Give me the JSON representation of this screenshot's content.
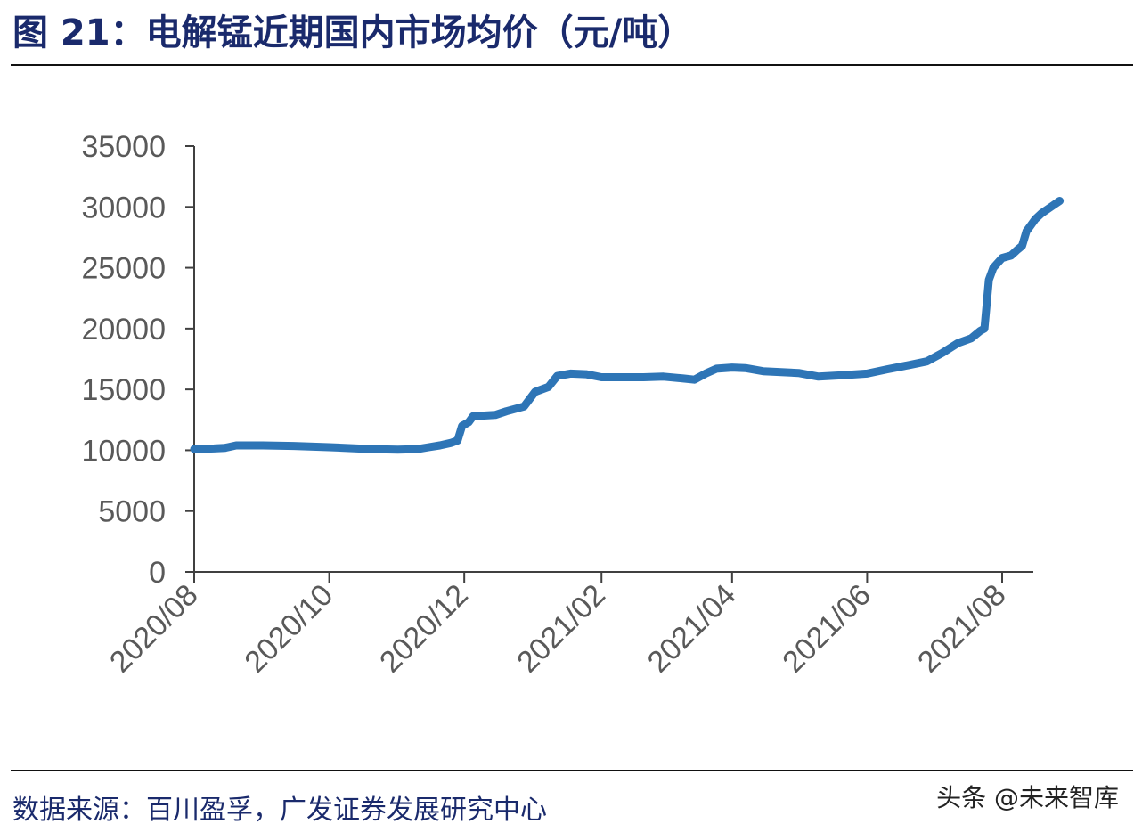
{
  "title": "图 21：电解锰近期国内市场均价（元/吨）",
  "source": "数据来源：百川盈孚，广发证券发展研究中心",
  "watermark": "头条 @未来智库",
  "colors": {
    "line": "#2e75b6",
    "axis": "#404040",
    "title": "#1a2a6c"
  },
  "chart_data": {
    "type": "line",
    "title": "图 21：电解锰近期国内市场均价（元/吨）",
    "xlabel": "",
    "ylabel": "",
    "ylim": [
      0,
      35000
    ],
    "yticks": [
      0,
      5000,
      10000,
      15000,
      20000,
      25000,
      30000,
      35000
    ],
    "xlim": [
      "2020-08-01",
      "2021-08-15"
    ],
    "xticks": [
      {
        "date": "2020-08-01",
        "label": "2020/08"
      },
      {
        "date": "2020-10-01",
        "label": "2020/10"
      },
      {
        "date": "2020-12-01",
        "label": "2020/12"
      },
      {
        "date": "2021-02-01",
        "label": "2021/02"
      },
      {
        "date": "2021-04-01",
        "label": "2021/04"
      },
      {
        "date": "2021-06-01",
        "label": "2021/06"
      },
      {
        "date": "2021-08-01",
        "label": "2021/08"
      }
    ],
    "grid": false,
    "legend": "none",
    "series": [
      {
        "points": [
          [
            "2020-08-01",
            10100
          ],
          [
            "2020-08-10",
            10150
          ],
          [
            "2020-08-15",
            10200
          ],
          [
            "2020-08-20",
            10400
          ],
          [
            "2020-09-01",
            10400
          ],
          [
            "2020-09-15",
            10350
          ],
          [
            "2020-10-01",
            10250
          ],
          [
            "2020-10-20",
            10100
          ],
          [
            "2020-11-01",
            10050
          ],
          [
            "2020-11-10",
            10100
          ],
          [
            "2020-11-15",
            10250
          ],
          [
            "2020-11-20",
            10400
          ],
          [
            "2020-11-25",
            10600
          ],
          [
            "2020-11-28",
            10800
          ],
          [
            "2020-11-30",
            12000
          ],
          [
            "2020-12-03",
            12300
          ],
          [
            "2020-12-05",
            12800
          ],
          [
            "2020-12-15",
            12900
          ],
          [
            "2020-12-20",
            13200
          ],
          [
            "2020-12-28",
            13600
          ],
          [
            "2021-01-02",
            14800
          ],
          [
            "2021-01-08",
            15200
          ],
          [
            "2021-01-12",
            16100
          ],
          [
            "2021-01-18",
            16300
          ],
          [
            "2021-01-25",
            16250
          ],
          [
            "2021-02-01",
            16000
          ],
          [
            "2021-02-20",
            16000
          ],
          [
            "2021-03-01",
            16050
          ],
          [
            "2021-03-10",
            15900
          ],
          [
            "2021-03-15",
            15800
          ],
          [
            "2021-03-20",
            16300
          ],
          [
            "2021-03-25",
            16700
          ],
          [
            "2021-04-01",
            16800
          ],
          [
            "2021-04-07",
            16750
          ],
          [
            "2021-04-15",
            16500
          ],
          [
            "2021-05-01",
            16350
          ],
          [
            "2021-05-10",
            16050
          ],
          [
            "2021-05-20",
            16150
          ],
          [
            "2021-06-01",
            16300
          ],
          [
            "2021-06-10",
            16650
          ],
          [
            "2021-06-20",
            17000
          ],
          [
            "2021-06-28",
            17300
          ],
          [
            "2021-07-05",
            18000
          ],
          [
            "2021-07-12",
            18800
          ],
          [
            "2021-07-18",
            19200
          ],
          [
            "2021-07-22",
            19800
          ],
          [
            "2021-07-24",
            20000
          ],
          [
            "2021-07-26",
            24000
          ],
          [
            "2021-07-28",
            25000
          ],
          [
            "2021-08-01",
            25800
          ],
          [
            "2021-08-05",
            26000
          ],
          [
            "2021-08-08",
            26500
          ],
          [
            "2021-08-10",
            26800
          ],
          [
            "2021-08-12",
            28000
          ],
          [
            "2021-08-14",
            28500
          ],
          [
            "2021-08-16",
            29000
          ],
          [
            "2021-08-19",
            29500
          ],
          [
            "2021-08-23",
            30000
          ],
          [
            "2021-08-27",
            30500
          ]
        ]
      }
    ]
  }
}
